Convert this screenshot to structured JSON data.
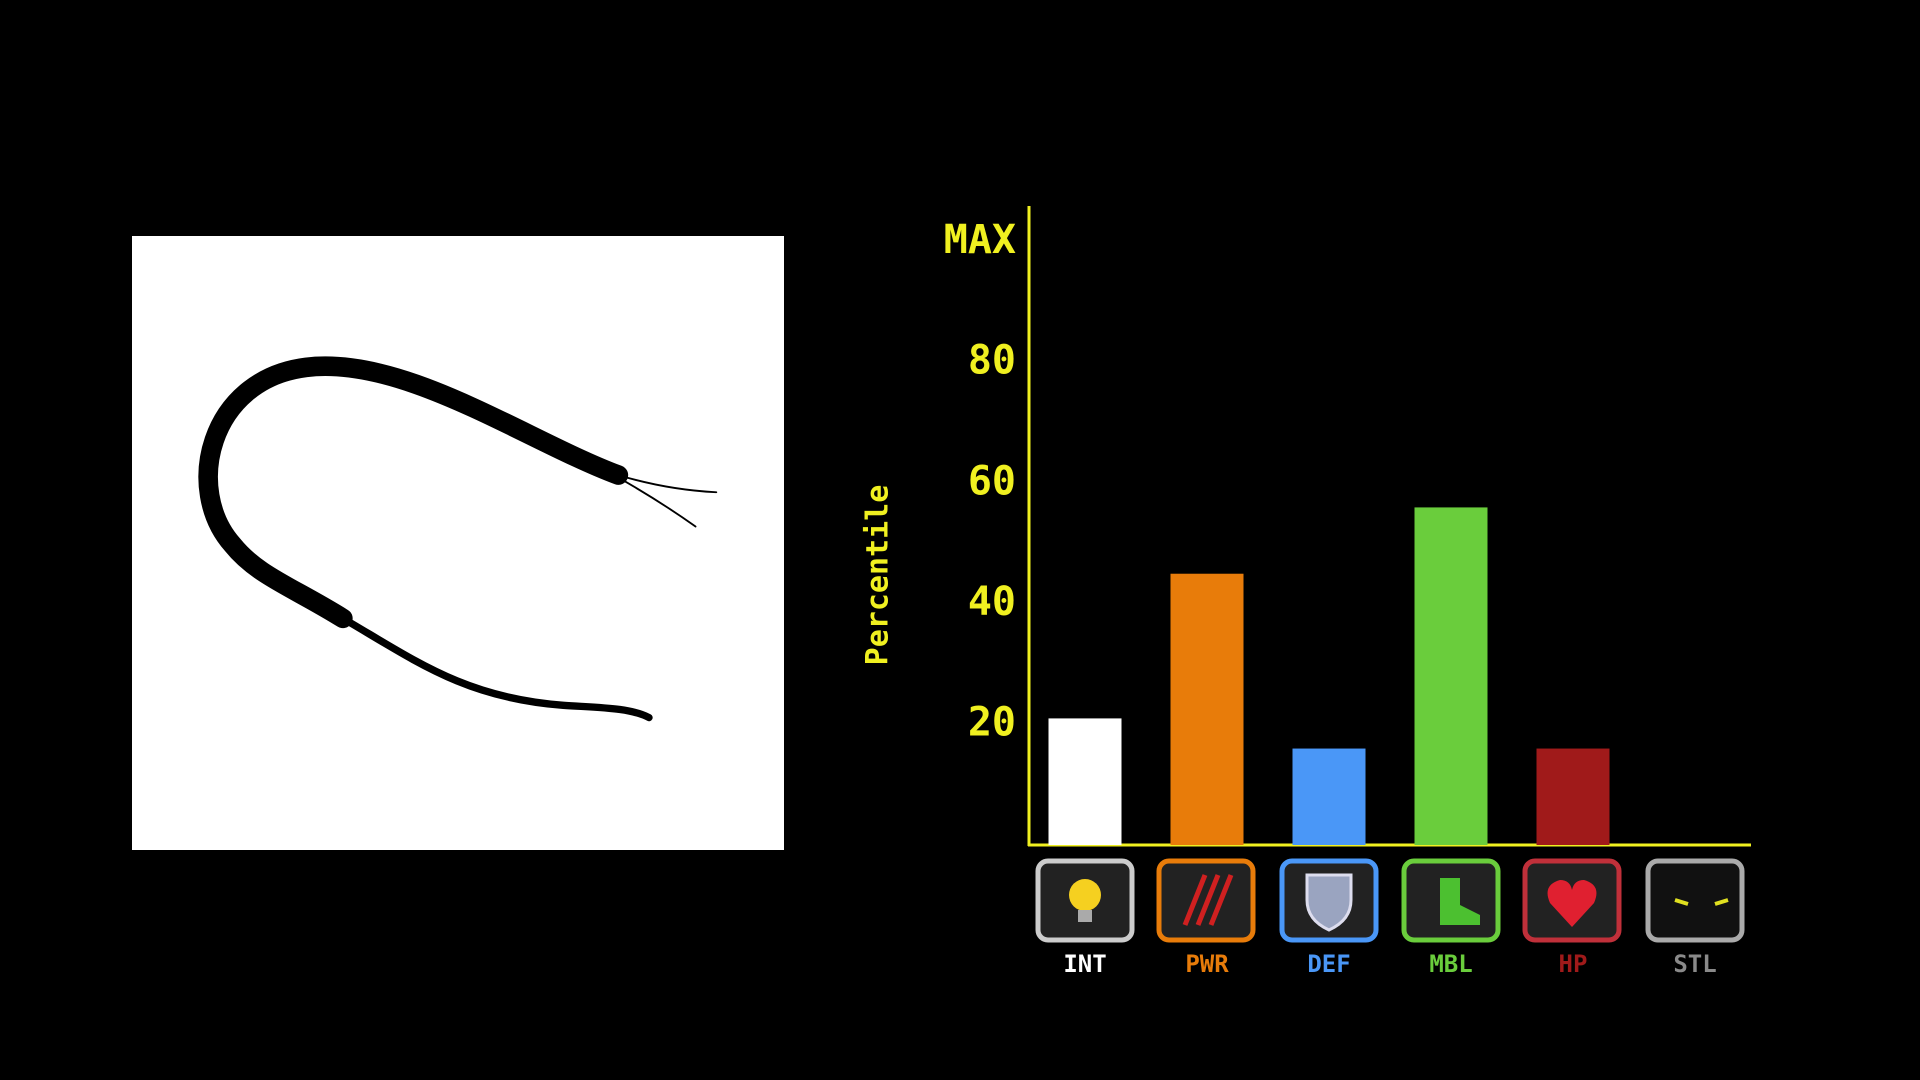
{
  "chart_data": {
    "type": "bar",
    "y_label": "Percentile",
    "categories": [
      "INT",
      "PWR",
      "DEF",
      "MBL",
      "HP",
      "STL"
    ],
    "values": [
      21,
      45,
      16,
      56,
      16,
      0
    ],
    "colors": [
      "#ffffff",
      "#e87c0a",
      "#4a97f7",
      "#6acd3c",
      "#a01a1a",
      "#8a8a8a"
    ],
    "ylim": [
      0,
      106
    ],
    "yticks": [
      20,
      40,
      60,
      80,
      {
        "value": 100,
        "label": "MAX"
      }
    ]
  }
}
